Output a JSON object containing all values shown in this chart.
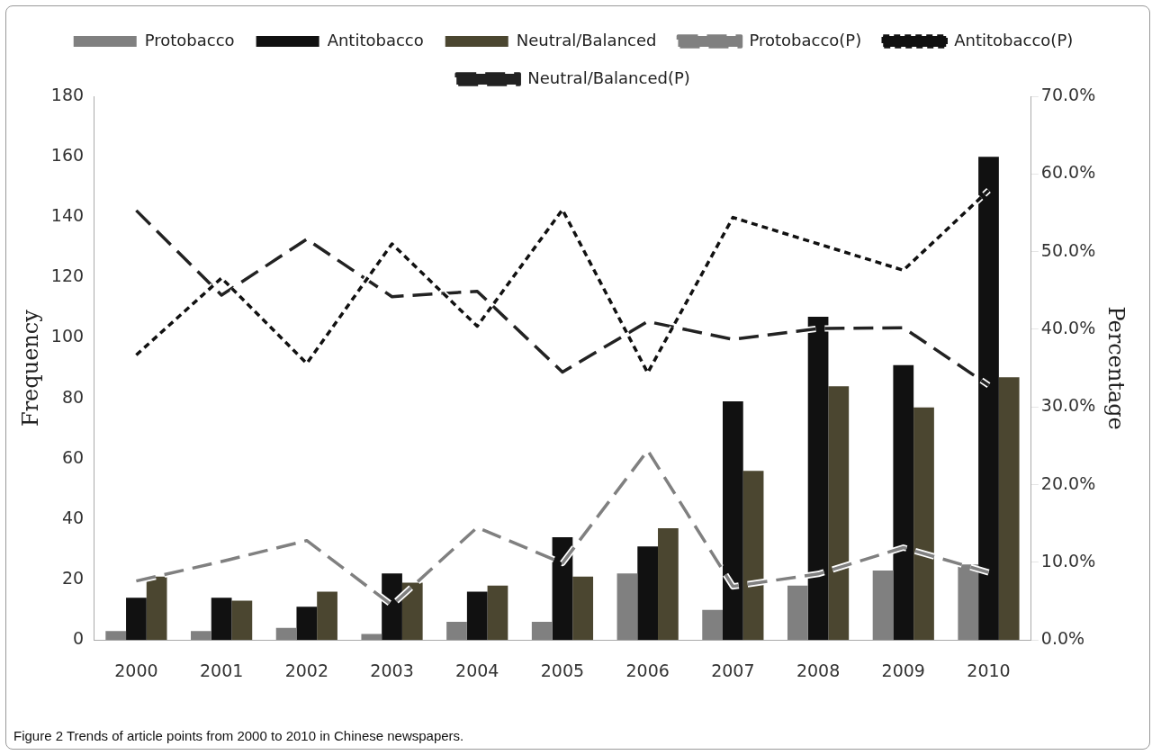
{
  "chart_data": {
    "type": "bar",
    "categories": [
      "2000",
      "2001",
      "2002",
      "2003",
      "2004",
      "2005",
      "2006",
      "2007",
      "2008",
      "2009",
      "2010"
    ],
    "ylabel": "Frequency",
    "y2label": "Percentage",
    "ylim": [
      0,
      180
    ],
    "yticks": [
      0,
      20,
      40,
      60,
      80,
      100,
      120,
      140,
      160,
      180
    ],
    "y2lim": [
      0,
      70
    ],
    "y2ticks": [
      {
        "value": 0,
        "label": "0.0%"
      },
      {
        "value": 10,
        "label": "10.0%"
      },
      {
        "value": 20,
        "label": "20.0%"
      },
      {
        "value": 30,
        "label": "30.0%"
      },
      {
        "value": 40,
        "label": "40.0%"
      },
      {
        "value": 50,
        "label": "50.0%"
      },
      {
        "value": 60,
        "label": "60.0%"
      },
      {
        "value": 70,
        "label": "70.0%"
      }
    ],
    "grid": false,
    "legend": "top",
    "line_style": "dashed",
    "marker": "none",
    "annotations": [
      "Figure 2 Trends of article points from 2000 to 2010 in Chinese newspapers."
    ],
    "series": [
      {
        "name": "Protobacco",
        "color": "#808080",
        "values": [
          3,
          3,
          4,
          2,
          6,
          6,
          22,
          10,
          18,
          23,
          25
        ]
      },
      {
        "name": "Antitobacco",
        "color": "#111111",
        "values": [
          14,
          14,
          11,
          22,
          16,
          34,
          31,
          79,
          107,
          91,
          160
        ]
      },
      {
        "name": "Neutral/Balanced",
        "color": "#4b4630",
        "values": [
          21,
          13,
          16,
          19,
          18,
          21,
          37,
          56,
          84,
          77,
          87
        ]
      },
      {
        "name": "Protobacco(P)",
        "type": "line",
        "axis": "y2",
        "color": "#808080",
        "values": [
          7.6,
          10.1,
          12.8,
          4.5,
          14.5,
          9.9,
          24.4,
          6.9,
          8.5,
          11.9,
          8.7
        ]
      },
      {
        "name": "Antitobacco(P)",
        "type": "line",
        "axis": "y2",
        "color": "#111111",
        "values": [
          36.7,
          46.6,
          35.6,
          51.0,
          40.4,
          55.4,
          34.4,
          54.4,
          51.0,
          47.6,
          57.9
        ]
      },
      {
        "name": "Neutral/Balanced(P)",
        "type": "line",
        "axis": "y2",
        "color": "#222222",
        "values": [
          55.3,
          44.4,
          51.6,
          44.2,
          44.9,
          34.5,
          41.0,
          38.7,
          40.1,
          40.2,
          32.8
        ]
      }
    ]
  }
}
